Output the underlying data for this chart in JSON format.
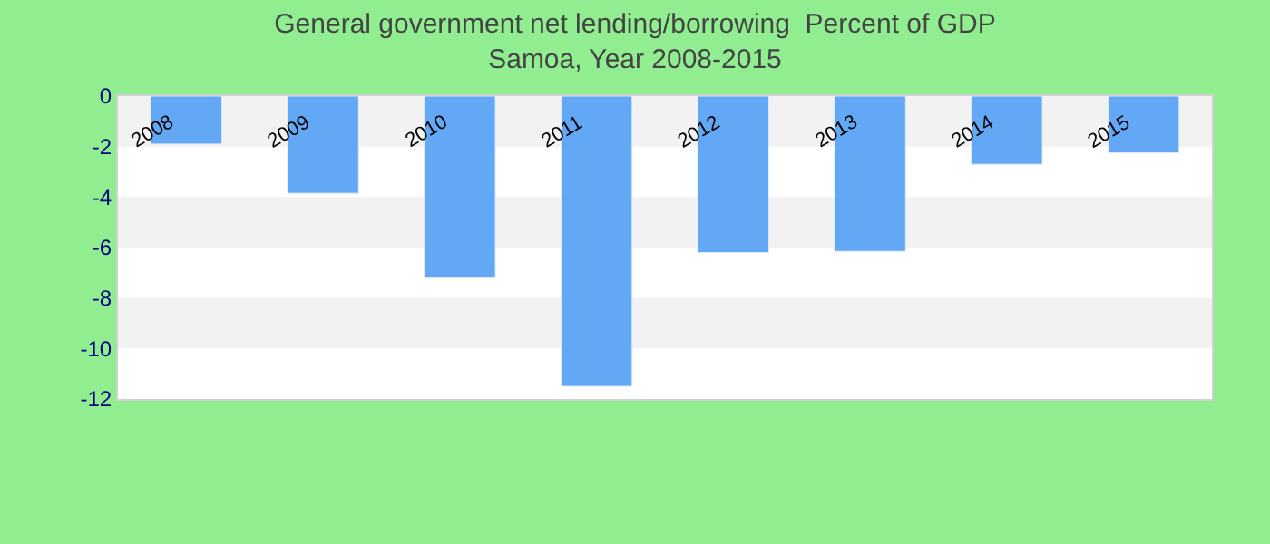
{
  "chart_data": {
    "type": "bar",
    "title": "General government net lending/borrowing  Percent of GDP",
    "subtitle": "Samoa, Year 2008-2015",
    "categories": [
      "2008",
      "2009",
      "2010",
      "2011",
      "2012",
      "2013",
      "2014",
      "2015"
    ],
    "values": [
      -1.9,
      -3.85,
      -7.2,
      -11.5,
      -6.2,
      -6.15,
      -2.7,
      -2.25
    ],
    "color": "#62a8f5",
    "ylim": [
      -12,
      0
    ],
    "yticks": [
      0,
      -2,
      -4,
      -6,
      -8,
      -10,
      -12
    ],
    "grid": false,
    "bands": [
      {
        "axis": "y",
        "from": 0,
        "to": -2,
        "color": "#f2f2f2"
      },
      {
        "axis": "y",
        "from": -4,
        "to": -6,
        "color": "#f2f2f2"
      },
      {
        "axis": "y",
        "from": -8,
        "to": -10,
        "color": "#f2f2f2"
      }
    ]
  }
}
